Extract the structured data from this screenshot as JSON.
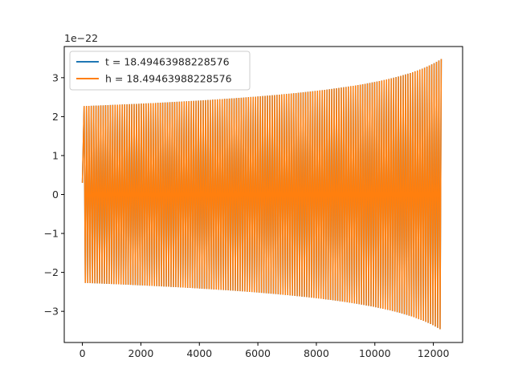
{
  "chart_data": {
    "type": "line",
    "title": "",
    "xlabel": "",
    "ylabel": "",
    "offset_label": "1e−22",
    "xlim": [
      -620,
      13000
    ],
    "ylim": [
      -3.8,
      3.8
    ],
    "x_ticks": [
      0,
      2000,
      4000,
      6000,
      8000,
      10000,
      12000
    ],
    "x_tick_labels": [
      "0",
      "2000",
      "4000",
      "6000",
      "8000",
      "10000",
      "12000"
    ],
    "y_ticks": [
      -3,
      -2,
      -1,
      0,
      1,
      2,
      3
    ],
    "y_tick_labels": [
      "−3",
      "−2",
      "−1",
      "0",
      "1",
      "2",
      "3"
    ],
    "grid": false,
    "legend_position": "top-left",
    "series": [
      {
        "name": "t = 18.49463988228576",
        "color": "#1f77b4",
        "x_start": 0,
        "x_end": 12270,
        "initial_value": 0.3,
        "amplitude_start": 2.27,
        "amplitude_end": 3.48,
        "peak_times": [
          60,
          12270
        ]
      },
      {
        "name": "h = 18.49463988228576",
        "color": "#ff7f0e",
        "x_start": 0,
        "x_end": 12270,
        "initial_value": 0.3,
        "amplitude_start": 2.27,
        "amplitude_end": 3.48,
        "peak_times": [
          60,
          12270
        ]
      }
    ]
  }
}
